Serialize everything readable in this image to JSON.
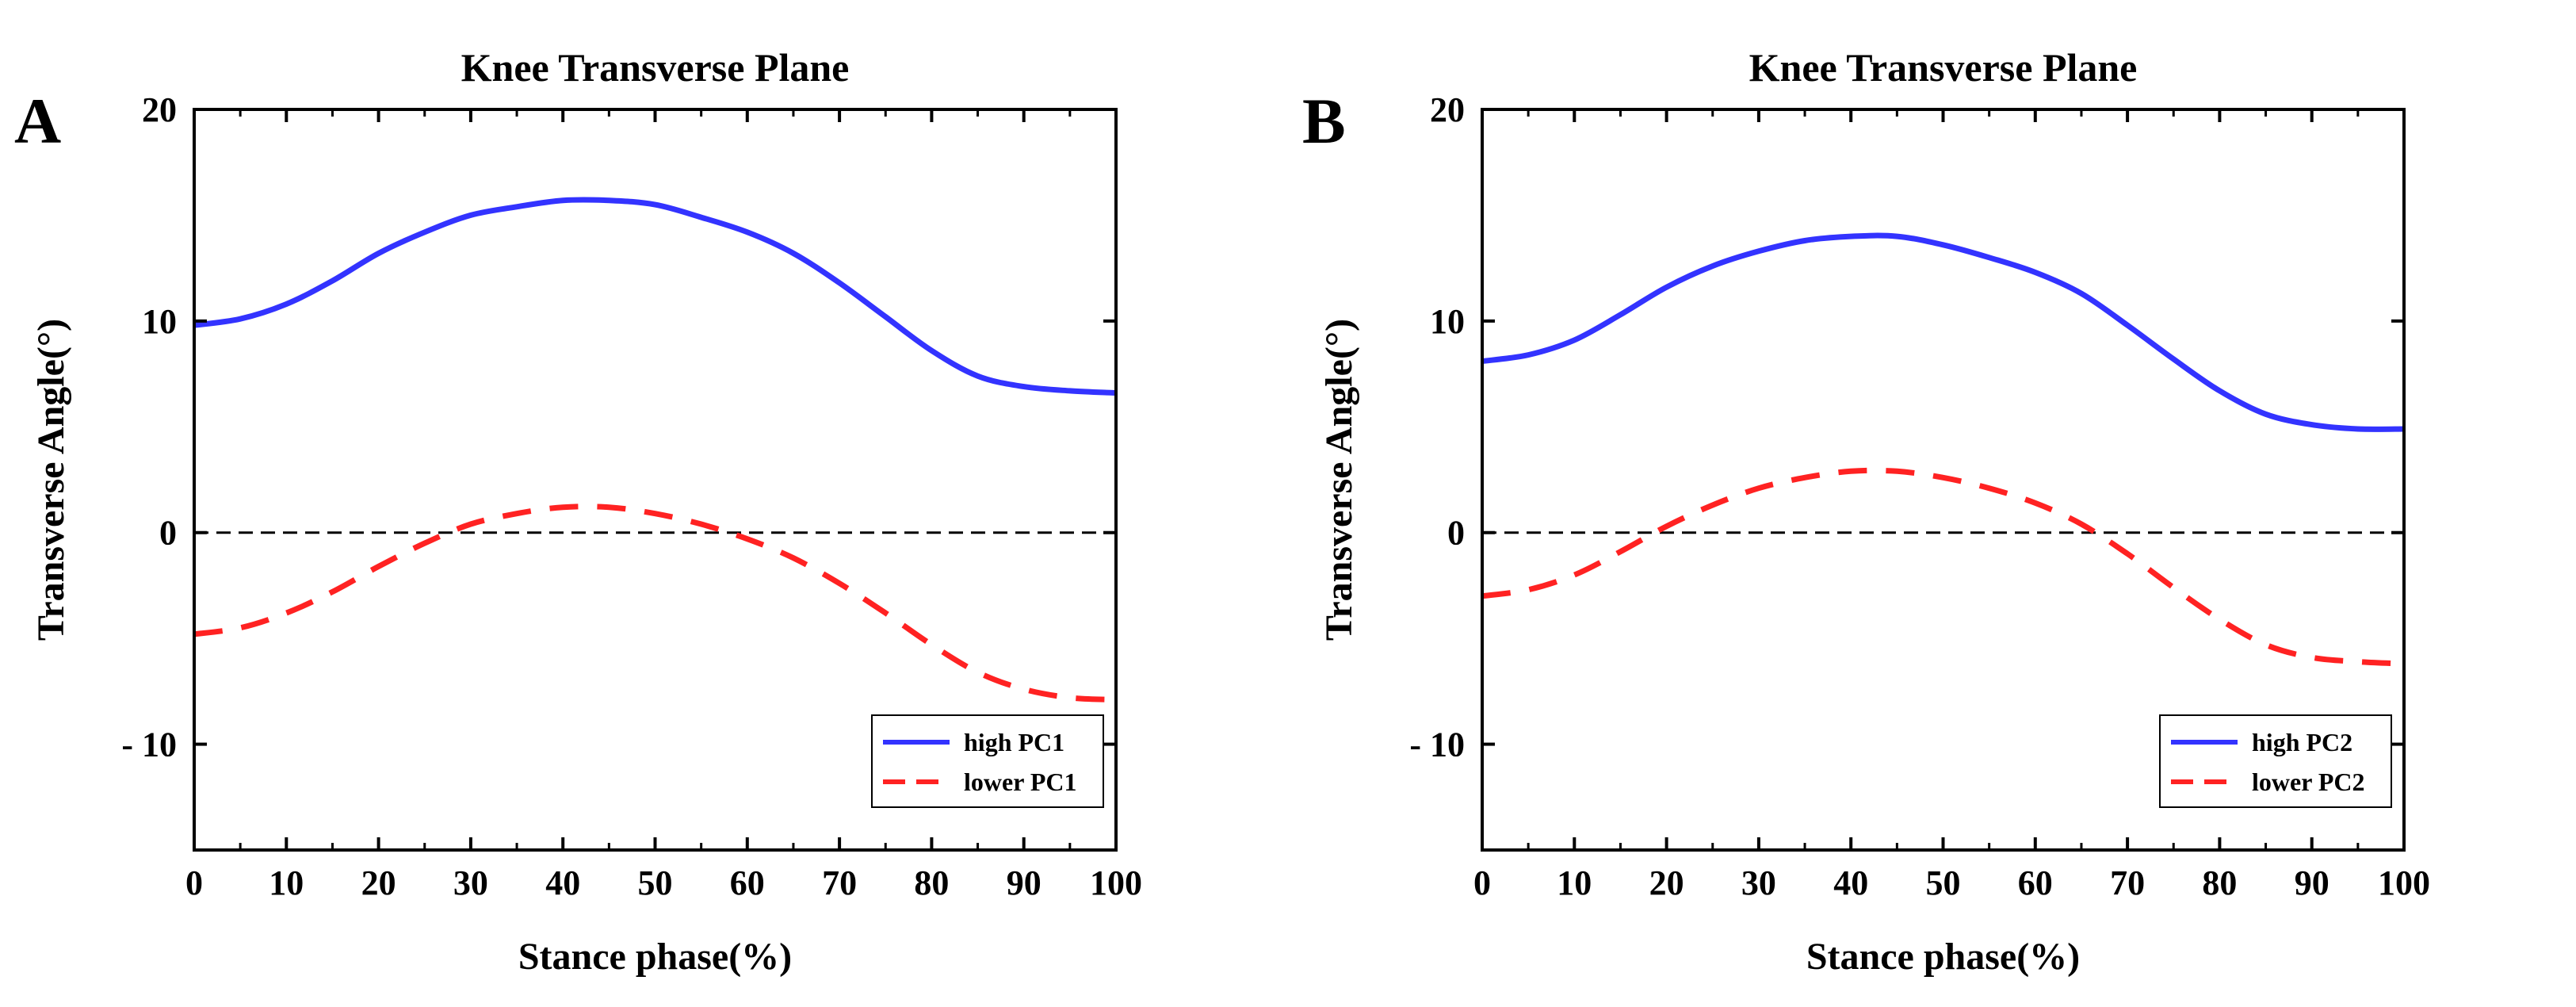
{
  "chart_data": [
    {
      "type": "line",
      "panel_label": "A",
      "title": "Knee Transverse Plane",
      "xlabel": "Stance phase(%)",
      "ylabel": "Transverse Angle(°)",
      "xlim": [
        0,
        100
      ],
      "ylim": [
        -15,
        20
      ],
      "xticks": [
        0,
        10,
        20,
        30,
        40,
        50,
        60,
        70,
        80,
        90,
        100
      ],
      "yticks": [
        -10,
        0,
        10,
        20
      ],
      "ytick_labels": [
        "- 10",
        "0",
        "10",
        "20"
      ],
      "reference_line_y": 0,
      "legend_position": "bottom-right",
      "series": [
        {
          "name": "high PC1",
          "color": "#3333ff",
          "style": "solid",
          "x": [
            0,
            5,
            10,
            15,
            20,
            25,
            30,
            35,
            40,
            45,
            50,
            55,
            60,
            65,
            70,
            75,
            80,
            85,
            90,
            95,
            100
          ],
          "y": [
            9.8,
            10.1,
            10.8,
            11.9,
            13.2,
            14.2,
            15.0,
            15.4,
            15.7,
            15.7,
            15.5,
            14.9,
            14.2,
            13.2,
            11.8,
            10.2,
            8.6,
            7.4,
            6.9,
            6.7,
            6.6
          ]
        },
        {
          "name": "lower PC1",
          "color": "#ff2222",
          "style": "dashed",
          "x": [
            0,
            5,
            10,
            15,
            20,
            25,
            30,
            35,
            40,
            45,
            50,
            55,
            60,
            65,
            70,
            75,
            80,
            85,
            90,
            95,
            100
          ],
          "y": [
            -4.8,
            -4.5,
            -3.8,
            -2.8,
            -1.6,
            -0.5,
            0.4,
            0.9,
            1.2,
            1.2,
            0.9,
            0.4,
            -0.3,
            -1.2,
            -2.4,
            -3.8,
            -5.3,
            -6.6,
            -7.4,
            -7.8,
            -7.9
          ]
        }
      ]
    },
    {
      "type": "line",
      "panel_label": "B",
      "title": "Knee Transverse Plane",
      "xlabel": "Stance phase(%)",
      "ylabel": "Transverse Angle(°)",
      "xlim": [
        0,
        100
      ],
      "ylim": [
        -15,
        20
      ],
      "xticks": [
        0,
        10,
        20,
        30,
        40,
        50,
        60,
        70,
        80,
        90,
        100
      ],
      "yticks": [
        -10,
        0,
        10,
        20
      ],
      "ytick_labels": [
        "- 10",
        "0",
        "10",
        "20"
      ],
      "reference_line_y": 0,
      "legend_position": "bottom-right",
      "series": [
        {
          "name": "high PC2",
          "color": "#3333ff",
          "style": "solid",
          "x": [
            0,
            5,
            10,
            15,
            20,
            25,
            30,
            35,
            40,
            45,
            50,
            55,
            60,
            65,
            70,
            75,
            80,
            85,
            90,
            95,
            100
          ],
          "y": [
            8.1,
            8.4,
            9.1,
            10.3,
            11.6,
            12.6,
            13.3,
            13.8,
            14.0,
            14.0,
            13.6,
            13.0,
            12.3,
            11.3,
            9.8,
            8.2,
            6.7,
            5.6,
            5.1,
            4.9,
            4.9
          ]
        },
        {
          "name": "lower PC2",
          "color": "#ff2222",
          "style": "dashed",
          "x": [
            0,
            5,
            10,
            15,
            20,
            25,
            30,
            35,
            40,
            45,
            50,
            55,
            60,
            65,
            70,
            75,
            80,
            85,
            90,
            95,
            100
          ],
          "y": [
            -3.0,
            -2.7,
            -2.0,
            -0.9,
            0.3,
            1.3,
            2.1,
            2.6,
            2.9,
            2.9,
            2.6,
            2.1,
            1.4,
            0.4,
            -1.0,
            -2.6,
            -4.1,
            -5.3,
            -5.9,
            -6.1,
            -6.2
          ]
        }
      ]
    }
  ]
}
